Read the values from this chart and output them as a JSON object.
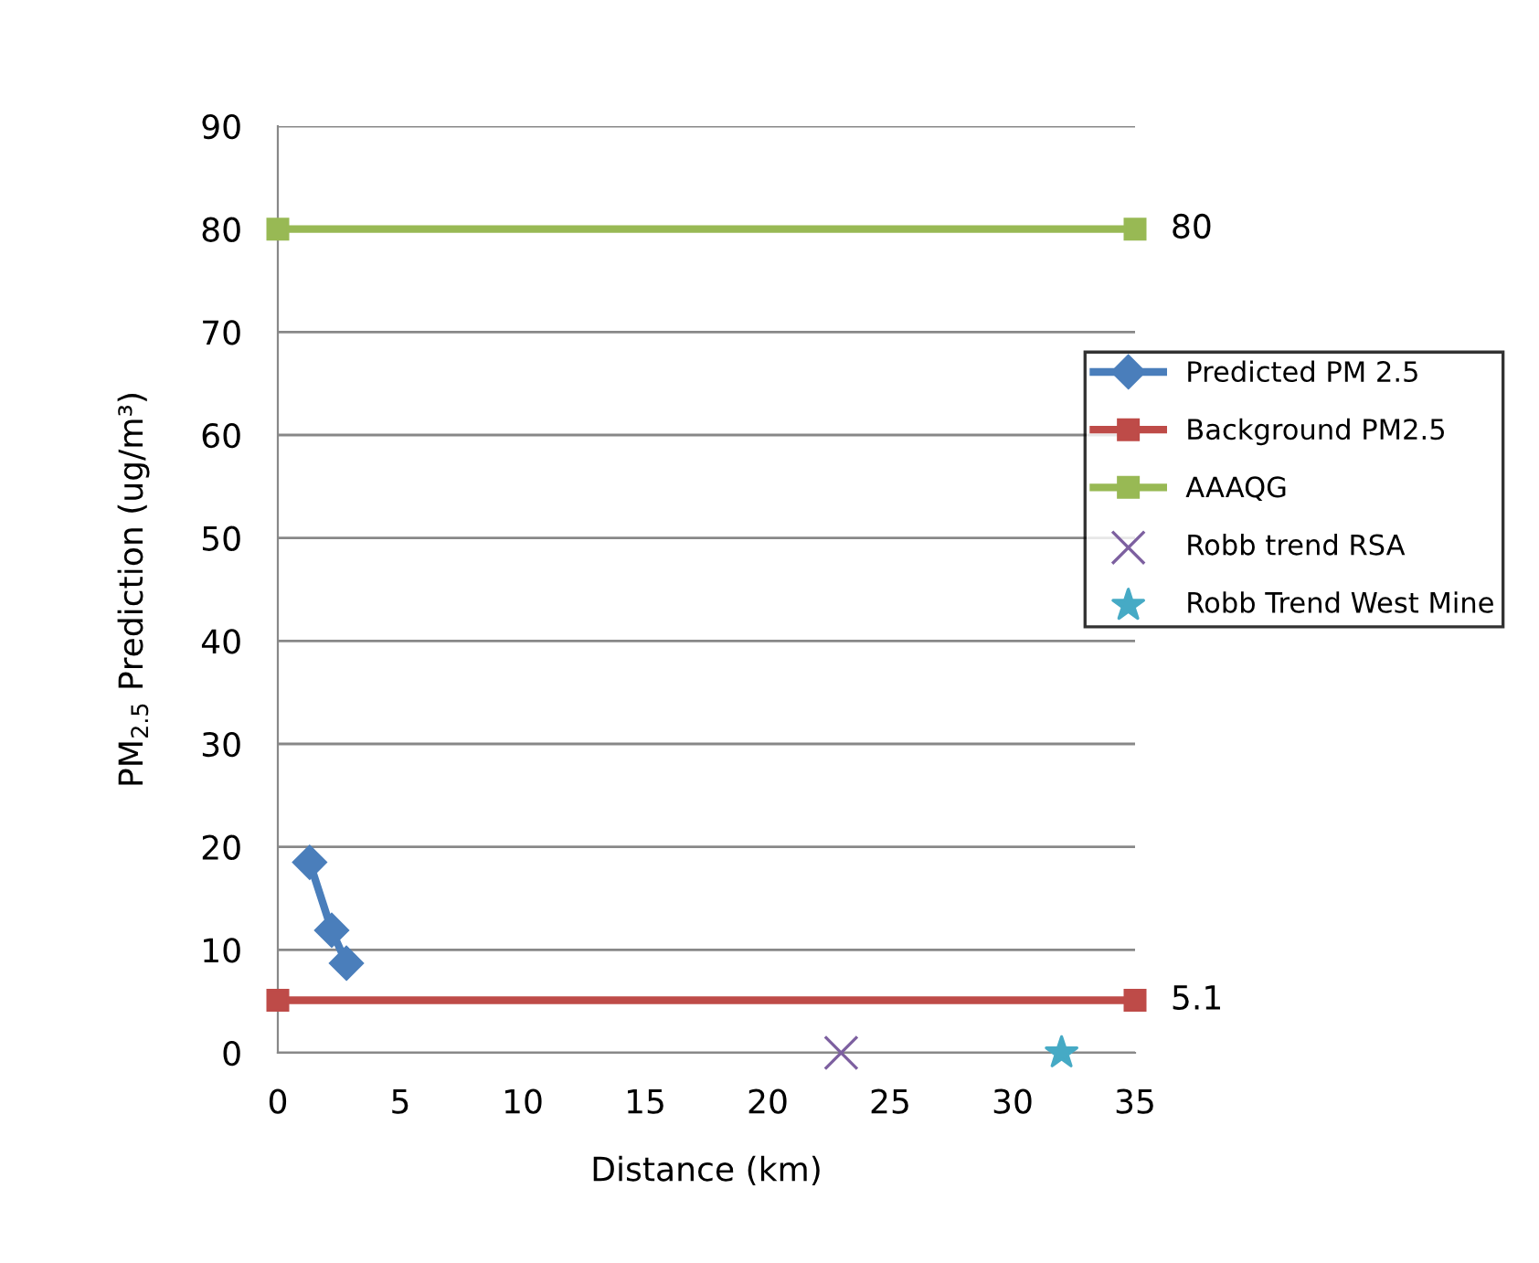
{
  "chart_data": {
    "type": "line",
    "xlabel": "Distance (km)",
    "ylabel": "PM$_{2.5}$ Prediction (ug/m³)",
    "xlim": [
      0,
      35
    ],
    "xticks": [
      0,
      5,
      10,
      15,
      20,
      25,
      30,
      35
    ],
    "ylim": [
      0,
      90
    ],
    "yticks": [
      0,
      10,
      20,
      30,
      40,
      50,
      60,
      70,
      80,
      90
    ],
    "grid": "y",
    "legend": "right",
    "series": [
      {
        "name": "Predicted PM 2.5",
        "color": "#4a7ebb",
        "marker": "diamond",
        "x": [
          1.3,
          2.2,
          2.8
        ],
        "values": [
          18.5,
          11.9,
          8.7
        ]
      },
      {
        "name": "Background PM2.5",
        "color": "#be4b48",
        "marker": "square",
        "x": [
          0,
          35
        ],
        "values": [
          5.1,
          5.1
        ],
        "value_labels": [
          null,
          "5.1"
        ]
      },
      {
        "name": "AAAQG",
        "color": "#98b954",
        "marker": "square",
        "x": [
          0,
          35
        ],
        "values": [
          80,
          80
        ],
        "value_labels": [
          null,
          "80"
        ]
      },
      {
        "name": "Robb trend RSA",
        "type": "scatter",
        "color": "#7d60a0",
        "marker": "cross",
        "x": [
          23
        ],
        "values": [
          0
        ]
      },
      {
        "name": "Robb Trend West Mine",
        "type": "scatter",
        "color": "#46aac5",
        "marker": "star",
        "x": [
          32
        ],
        "values": [
          0
        ]
      }
    ]
  }
}
